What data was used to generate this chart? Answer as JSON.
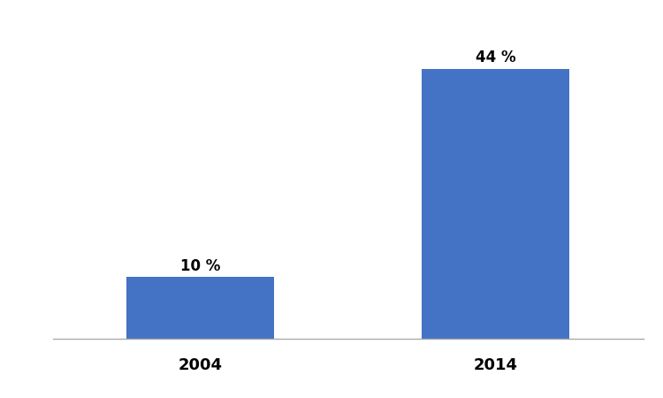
{
  "categories": [
    "2004",
    "2014"
  ],
  "values": [
    10,
    44
  ],
  "labels": [
    "10 %",
    "44 %"
  ],
  "bar_color": "#4472C4",
  "background_color": "#ffffff",
  "ylim": [
    0,
    50
  ],
  "bar_width": 0.25,
  "x_positions": [
    0.25,
    0.75
  ],
  "xlim": [
    0.0,
    1.0
  ],
  "label_fontsize": 12,
  "tick_fontsize": 13,
  "label_fontweight": "bold",
  "tick_fontweight": "bold"
}
